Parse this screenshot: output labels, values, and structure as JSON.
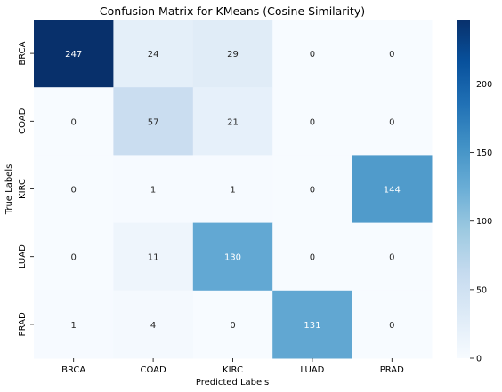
{
  "chart_data": {
    "type": "heatmap",
    "title": "Confusion Matrix for KMeans (Cosine Similarity)",
    "xlabel": "Predicted Labels",
    "ylabel": "True Labels",
    "x_categories": [
      "BRCA",
      "COAD",
      "KIRC",
      "LUAD",
      "PRAD"
    ],
    "y_categories": [
      "BRCA",
      "COAD",
      "KIRC",
      "LUAD",
      "PRAD"
    ],
    "values": [
      [
        247,
        24,
        29,
        0,
        0
      ],
      [
        0,
        57,
        21,
        0,
        0
      ],
      [
        0,
        1,
        1,
        0,
        144
      ],
      [
        0,
        11,
        130,
        0,
        0
      ],
      [
        1,
        4,
        0,
        131,
        0
      ]
    ],
    "colorbar": {
      "min": 0,
      "max": 247,
      "ticks": [
        0,
        50,
        100,
        150,
        200
      ],
      "colormap": "Blues",
      "low_color": "#f7fbff",
      "high_color": "#08306b"
    },
    "grid": false,
    "legend": "colorbar-right"
  }
}
